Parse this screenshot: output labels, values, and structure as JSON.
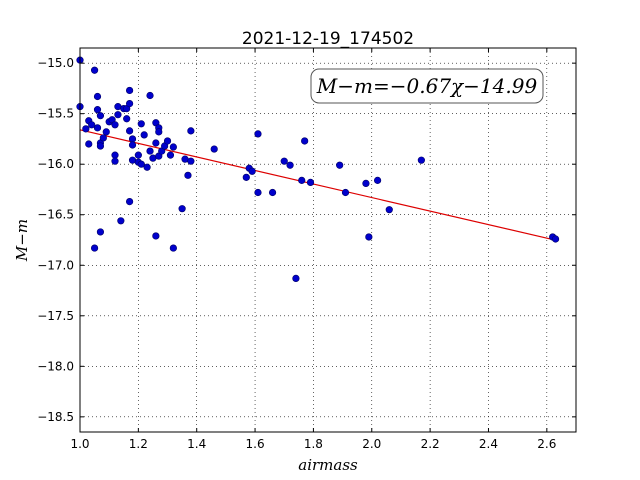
{
  "chart_data": {
    "type": "scatter",
    "title": "2021-12-19_174502",
    "xlabel": "airmass",
    "ylabel": "M−m",
    "xlim": [
      1.0,
      2.7
    ],
    "ylim": [
      -18.65,
      -14.85
    ],
    "y_inverted": true,
    "x_ticks": [
      "1.0",
      "1.2",
      "1.4",
      "1.6",
      "1.8",
      "2.0",
      "2.2",
      "2.4",
      "2.6"
    ],
    "y_ticks": [
      "−15.0",
      "−15.5",
      "−16.0",
      "−16.5",
      "−17.0",
      "−17.5",
      "−18.0",
      "−18.5"
    ],
    "grid": true,
    "annotation": "M−m=−0.67χ−14.99",
    "annotation_position": "top-right",
    "point_color": "#0000cc",
    "fit_color": "#dd0000",
    "fit_line": {
      "slope": -0.67,
      "intercept": -14.99,
      "x_range": [
        1.0,
        2.63
      ]
    },
    "points": [
      [
        1.0,
        -14.97
      ],
      [
        1.0,
        -15.43
      ],
      [
        1.02,
        -15.65
      ],
      [
        1.03,
        -15.57
      ],
      [
        1.03,
        -15.8
      ],
      [
        1.04,
        -15.61
      ],
      [
        1.05,
        -15.07
      ],
      [
        1.05,
        -16.83
      ],
      [
        1.06,
        -15.33
      ],
      [
        1.06,
        -15.46
      ],
      [
        1.06,
        -15.64
      ],
      [
        1.07,
        -15.52
      ],
      [
        1.07,
        -15.79
      ],
      [
        1.07,
        -15.82
      ],
      [
        1.07,
        -16.67
      ],
      [
        1.08,
        -15.74
      ],
      [
        1.09,
        -15.68
      ],
      [
        1.1,
        -15.58
      ],
      [
        1.11,
        -15.56
      ],
      [
        1.12,
        -15.61
      ],
      [
        1.12,
        -15.91
      ],
      [
        1.12,
        -15.97
      ],
      [
        1.13,
        -15.43
      ],
      [
        1.13,
        -15.51
      ],
      [
        1.14,
        -16.56
      ],
      [
        1.15,
        -15.45
      ],
      [
        1.16,
        -15.45
      ],
      [
        1.16,
        -15.55
      ],
      [
        1.17,
        -15.27
      ],
      [
        1.17,
        -15.4
      ],
      [
        1.17,
        -15.67
      ],
      [
        1.17,
        -16.37
      ],
      [
        1.18,
        -15.75
      ],
      [
        1.18,
        -15.81
      ],
      [
        1.18,
        -15.96
      ],
      [
        1.2,
        -15.91
      ],
      [
        1.2,
        -15.98
      ],
      [
        1.21,
        -15.6
      ],
      [
        1.21,
        -16.0
      ],
      [
        1.22,
        -15.71
      ],
      [
        1.23,
        -16.03
      ],
      [
        1.24,
        -15.32
      ],
      [
        1.24,
        -15.87
      ],
      [
        1.25,
        -15.94
      ],
      [
        1.26,
        -15.59
      ],
      [
        1.26,
        -15.79
      ],
      [
        1.26,
        -16.71
      ],
      [
        1.27,
        -15.64
      ],
      [
        1.27,
        -15.68
      ],
      [
        1.27,
        -15.92
      ],
      [
        1.28,
        -15.87
      ],
      [
        1.29,
        -15.82
      ],
      [
        1.3,
        -15.77
      ],
      [
        1.31,
        -15.91
      ],
      [
        1.32,
        -16.83
      ],
      [
        1.32,
        -15.83
      ],
      [
        1.35,
        -16.44
      ],
      [
        1.36,
        -15.95
      ],
      [
        1.37,
        -16.11
      ],
      [
        1.38,
        -15.67
      ],
      [
        1.38,
        -15.97
      ],
      [
        1.46,
        -15.85
      ],
      [
        1.57,
        -16.13
      ],
      [
        1.58,
        -16.04
      ],
      [
        1.59,
        -16.07
      ],
      [
        1.61,
        -15.7
      ],
      [
        1.61,
        -16.28
      ],
      [
        1.66,
        -16.28
      ],
      [
        1.7,
        -15.97
      ],
      [
        1.72,
        -16.01
      ],
      [
        1.74,
        -17.13
      ],
      [
        1.76,
        -16.16
      ],
      [
        1.77,
        -15.77
      ],
      [
        1.79,
        -16.18
      ],
      [
        1.89,
        -16.01
      ],
      [
        1.91,
        -16.28
      ],
      [
        1.98,
        -16.19
      ],
      [
        1.99,
        -16.72
      ],
      [
        2.02,
        -16.16
      ],
      [
        2.06,
        -16.45
      ],
      [
        2.17,
        -15.96
      ],
      [
        2.62,
        -16.72
      ],
      [
        2.63,
        -16.74
      ]
    ]
  }
}
